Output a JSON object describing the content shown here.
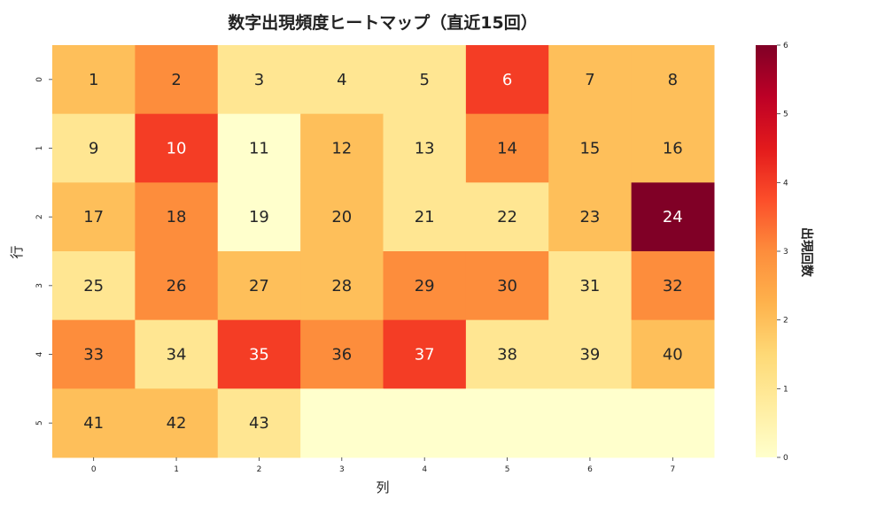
{
  "chart_data": {
    "type": "heatmap",
    "title": "数字出現頻度ヒートマップ（直近15回）",
    "xlabel": "列",
    "ylabel": "行",
    "x_categories": [
      "0",
      "1",
      "2",
      "3",
      "4",
      "5",
      "6",
      "7"
    ],
    "y_categories": [
      "0",
      "1",
      "2",
      "3",
      "4",
      "5"
    ],
    "annotations": [
      [
        "1",
        "2",
        "3",
        "4",
        "5",
        "6",
        "7",
        "8"
      ],
      [
        "9",
        "10",
        "11",
        "12",
        "13",
        "14",
        "15",
        "16"
      ],
      [
        "17",
        "18",
        "19",
        "20",
        "21",
        "22",
        "23",
        "24"
      ],
      [
        "25",
        "26",
        "27",
        "28",
        "29",
        "30",
        "31",
        "32"
      ],
      [
        "33",
        "34",
        "35",
        "36",
        "37",
        "38",
        "39",
        "40"
      ],
      [
        "41",
        "42",
        "43",
        "",
        "",
        "",
        "",
        ""
      ]
    ],
    "values": [
      [
        2,
        3,
        1,
        1,
        1,
        4,
        2,
        2
      ],
      [
        1,
        4,
        0,
        2,
        1,
        3,
        2,
        2
      ],
      [
        2,
        3,
        0,
        2,
        1,
        1,
        2,
        6
      ],
      [
        1,
        3,
        2,
        2,
        3,
        3,
        1,
        3
      ],
      [
        3,
        1,
        4,
        3,
        4,
        1,
        1,
        2
      ],
      [
        2,
        2,
        1,
        0,
        0,
        0,
        0,
        0
      ]
    ],
    "colorbar": {
      "label": "出現回数",
      "min": 0,
      "max": 6,
      "ticks": [
        "0",
        "1",
        "2",
        "3",
        "4",
        "5",
        "6"
      ],
      "colormap": "YlOrRd"
    },
    "colors": {
      "stops": [
        "#ffffcc",
        "#ffeda0",
        "#fed976",
        "#feb24c",
        "#fd8d3c",
        "#fc4e2a",
        "#e31a1c",
        "#bd0026",
        "#800026"
      ]
    }
  }
}
